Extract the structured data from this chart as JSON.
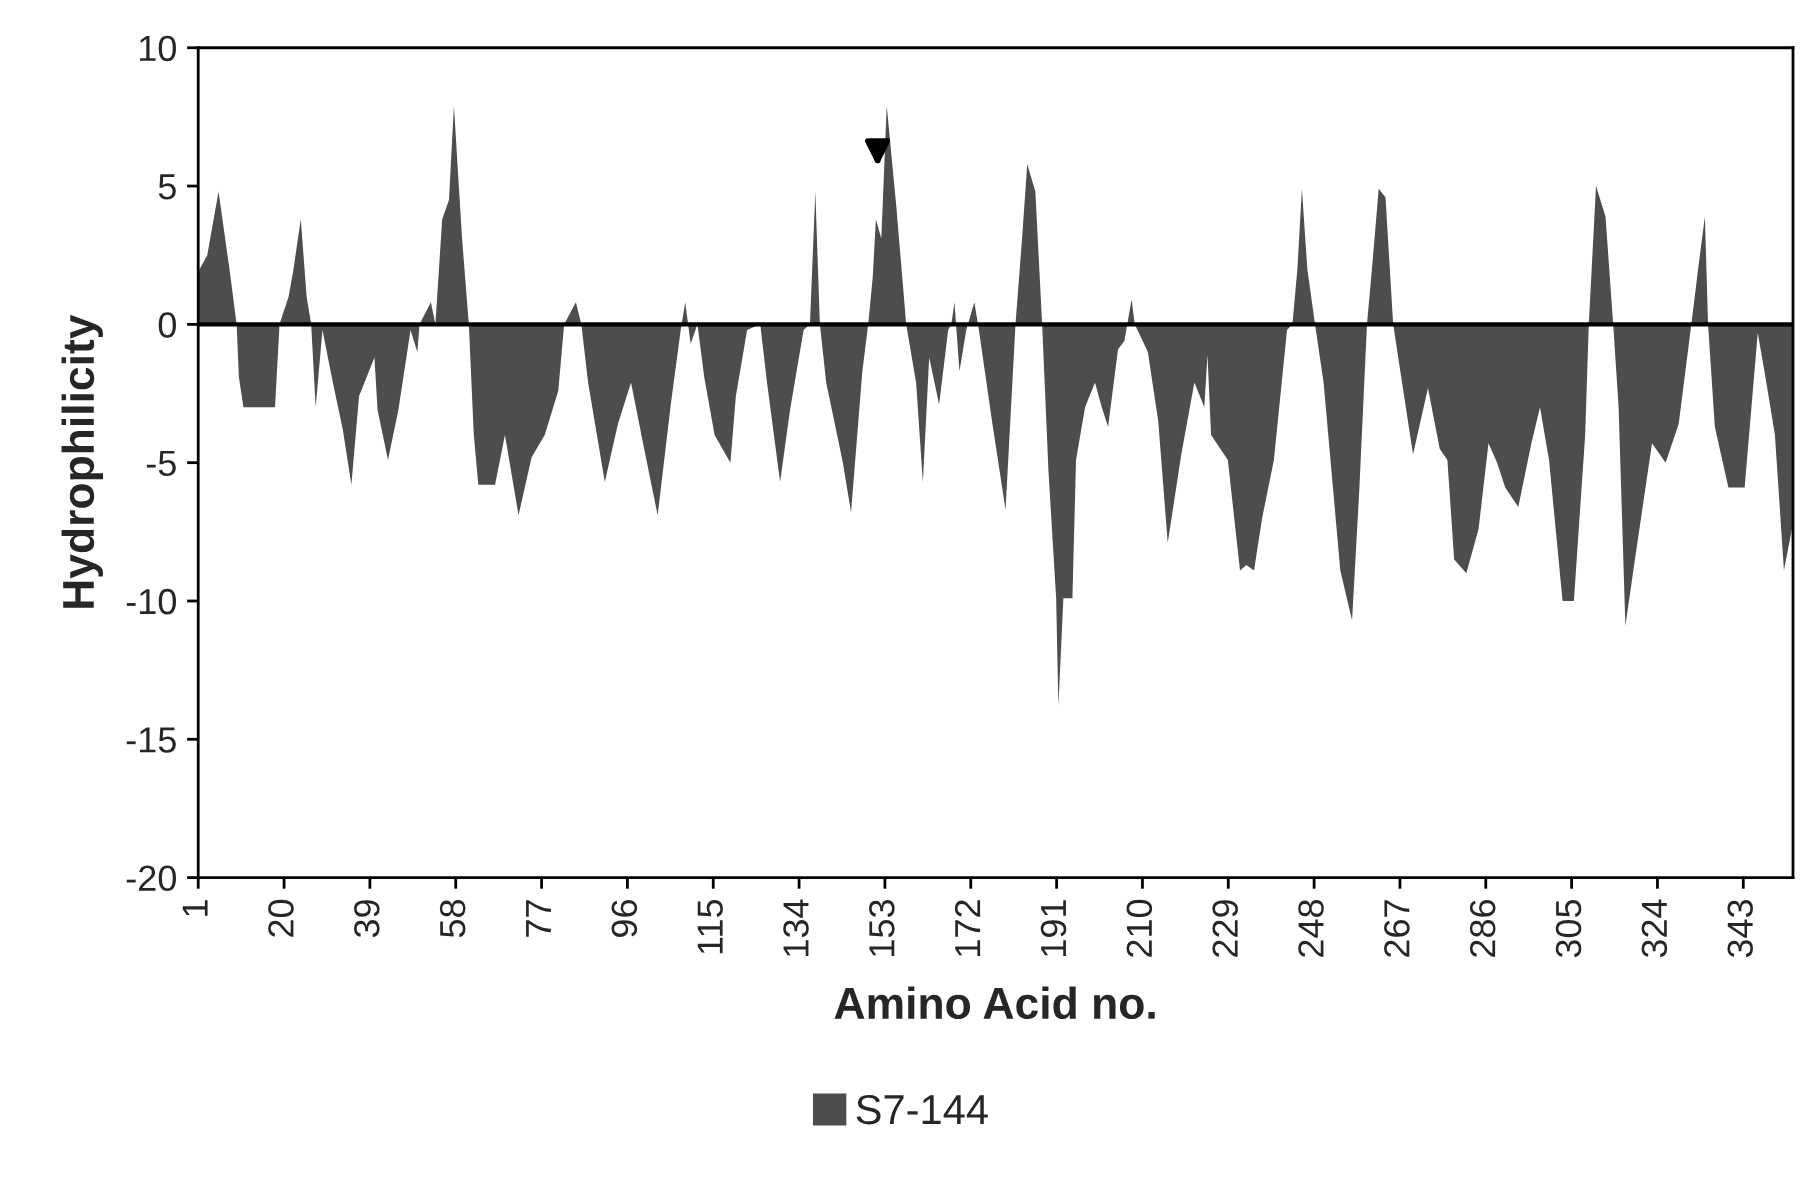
{
  "chart_data": {
    "type": "area",
    "xlabel": "Amino Acid no.",
    "ylabel": "Hydrophilicity",
    "xlim": [
      1,
      354
    ],
    "xticks": [
      1,
      20,
      39,
      58,
      77,
      96,
      115,
      134,
      153,
      172,
      191,
      210,
      229,
      248,
      267,
      286,
      305,
      324,
      343
    ],
    "ylim": [
      -20,
      10
    ],
    "yticks": [
      -20,
      -15,
      -10,
      -5,
      0,
      5,
      10
    ],
    "grid": false,
    "legend": "bottom",
    "ref_lines": [
      {
        "axis": "y",
        "value": 0,
        "color": "#000000"
      }
    ],
    "series": [
      {
        "name": "S7-144",
        "color": "#4d4d4d",
        "x": [
          1,
          3,
          5.5,
          8,
          9.5,
          10,
          11,
          18,
          19,
          21,
          22,
          23.7,
          25,
          26,
          27,
          28.5,
          30.8,
          33,
          34.9,
          36.6,
          40,
          40.7,
          43,
          45.3,
          48,
          49.5,
          50,
          52.5,
          53.5,
          55,
          56.5,
          57.6,
          59.4,
          60.9,
          62,
          63,
          66.7,
          68.9,
          71.9,
          74.8,
          77.7,
          80.7,
          82,
          84.6,
          85.8,
          87.3,
          91,
          93.9,
          96.8,
          99.7,
          102.7,
          105.6,
          107.8,
          108.8,
          110,
          111.5,
          113,
          115.3,
          118.8,
          120,
          122.5,
          125.4,
          126.9,
          129.8,
          132,
          135,
          136.4,
          137.6,
          138.6,
          140,
          143.7,
          145.5,
          148,
          149.3,
          150.3,
          151,
          152.2,
          153.4,
          155.5,
          157,
          157.7,
          159.9,
          161.4,
          162.8,
          165,
          167,
          167.7,
          168.4,
          169.5,
          171,
          172.8,
          173.8,
          176.8,
          179.7,
          181.9,
          183.4,
          184.5,
          186.3,
          187.8,
          189.2,
          190.9,
          191.4,
          192.5,
          194.5,
          195.3,
          197.3,
          199.5,
          201,
          202.4,
          204.6,
          206,
          207.6,
          208.3,
          211.2,
          213.5,
          215.6,
          218.6,
          221.5,
          223.7,
          224.4,
          225.2,
          228.9,
          231.6,
          233,
          234.7,
          236.5,
          239.1,
          242,
          243.2,
          244.3,
          245.3,
          246.5,
          248.2,
          250.1,
          253.8,
          256.4,
          258,
          259.7,
          260.8,
          262.3,
          263.8,
          265.5,
          267,
          269.9,
          273.2,
          275.8,
          277.5,
          279,
          281.7,
          284.4,
          286.6,
          288.5,
          290.3,
          293.2,
          296.1,
          298,
          300,
          303,
          305.5,
          308,
          308.8,
          310.4,
          312.5,
          314.2,
          315.4,
          316.9,
          319.1,
          322.8,
          325.8,
          328.7,
          331.5,
          333,
          334.5,
          335.2,
          336.7,
          339.7,
          343.3,
          346.2,
          348,
          350,
          352,
          354
        ],
        "values": [
          1.9,
          2.5,
          4.8,
          1.9,
          0,
          -1.9,
          -3,
          -3,
          0,
          1,
          1.9,
          3.8,
          1,
          0,
          -3,
          -0.2,
          -2.1,
          -3.8,
          -5.8,
          -2.6,
          -1.2,
          -3.1,
          -4.9,
          -3.1,
          -0.2,
          -1,
          0,
          0.8,
          0,
          3.8,
          4.5,
          7.9,
          3.1,
          0,
          -4,
          -5.8,
          -5.8,
          -4,
          -6.9,
          -4.8,
          -4,
          -2.4,
          0,
          0.8,
          0,
          -2.1,
          -5.7,
          -3.6,
          -2.1,
          -4.5,
          -6.9,
          -2.9,
          -0.2,
          0.8,
          -0.7,
          0,
          -1.9,
          -4,
          -5,
          -2.6,
          -0.2,
          0,
          -2.1,
          -5.7,
          -3.1,
          -0.2,
          0,
          4.8,
          0,
          -2.1,
          -5,
          -6.8,
          -1.7,
          0,
          1.7,
          3.8,
          3.1,
          7.9,
          4.3,
          1.4,
          0,
          -2.1,
          -5.7,
          -1.2,
          -2.9,
          -0.2,
          0,
          0.8,
          -1.7,
          -0.2,
          0.8,
          -0.2,
          -3.6,
          -6.7,
          0,
          3.2,
          5.8,
          4.8,
          0,
          -5.3,
          -9.9,
          -13.8,
          -9.9,
          -9.9,
          -4.9,
          -3,
          -2.1,
          -3,
          -3.7,
          -0.9,
          -0.6,
          0.9,
          0,
          -1,
          -3.5,
          -7.9,
          -4.7,
          -2.1,
          -3,
          -1.1,
          -4,
          -4.9,
          -8.9,
          -8.7,
          -8.9,
          -7,
          -4.9,
          -0.2,
          0,
          2,
          4.9,
          2,
          0,
          -2.1,
          -8.9,
          -10.7,
          -6,
          0,
          2,
          4.9,
          4.6,
          0,
          -1.6,
          -4.7,
          -2.3,
          -4.5,
          -4.9,
          -8.5,
          -9,
          -7.4,
          -4.3,
          -5,
          -5.9,
          -6.6,
          -4.3,
          -3,
          -4.9,
          -10,
          -10,
          -4,
          0,
          5,
          3.9,
          0,
          -3,
          -10.9,
          -8.4,
          -4.3,
          -5,
          -3.6,
          0,
          2,
          3.9,
          0,
          -3.7,
          -5.9,
          -5.9,
          -0.3,
          -2,
          -4,
          -8.9,
          -7.2
        ]
      }
    ]
  }
}
